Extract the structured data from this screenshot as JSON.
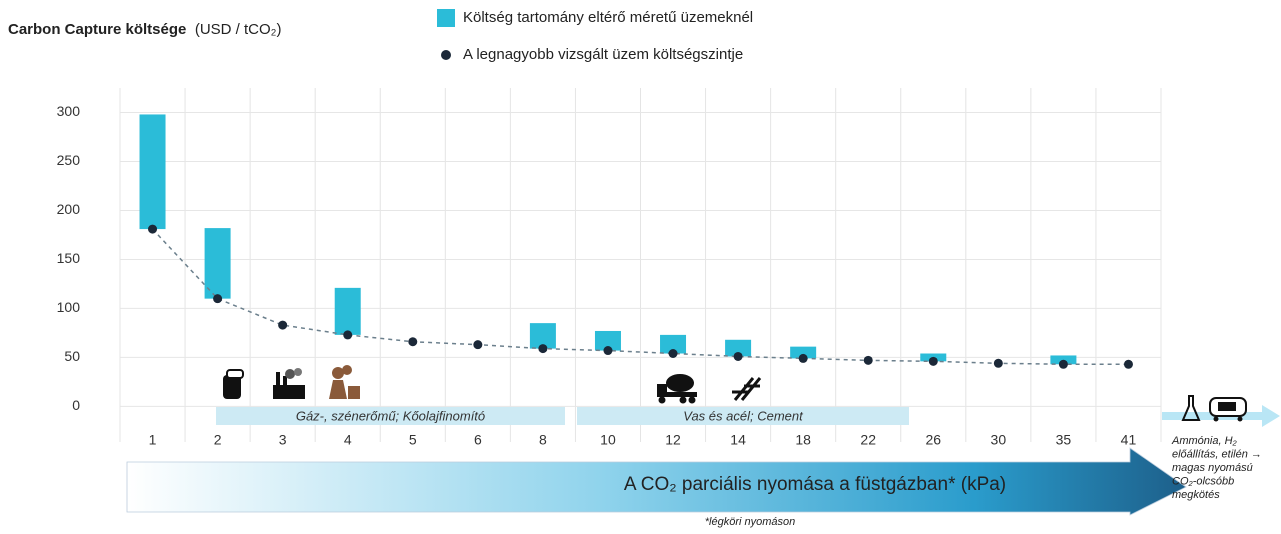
{
  "chart_data": {
    "type": "range-dot",
    "title": "Carbon Capture költsége",
    "y_axis_label": "(USD / tCO₂)",
    "x_axis_label": "A CO₂ parciális nyomása a füstgázban* (kPa)",
    "footnote": "*légköri nyomáson",
    "categories": [
      "1",
      "2",
      "3",
      "4",
      "5",
      "6",
      "8",
      "10",
      "12",
      "14",
      "18",
      "22",
      "26",
      "30",
      "35",
      "41"
    ],
    "series": [
      {
        "name": "Költség tartomány eltérő méretű üzemeknél",
        "color": "#2bbcd8",
        "kind": "range",
        "low": [
          181,
          110,
          null,
          73,
          null,
          null,
          59,
          57,
          54,
          51,
          49,
          null,
          46,
          null,
          43,
          null
        ],
        "high": [
          298,
          182,
          null,
          121,
          null,
          null,
          85,
          77,
          73,
          68,
          61,
          null,
          54,
          null,
          52,
          null
        ]
      },
      {
        "name": "A legnagyobb vizsgált üzem költségszintje",
        "color": "#1b2838",
        "kind": "dot",
        "values": [
          181,
          110,
          83,
          73,
          66,
          63,
          59,
          57,
          54,
          51,
          49,
          47,
          46,
          44,
          43,
          43
        ]
      }
    ],
    "ylim": [
      -20,
      325
    ],
    "yticks": [
      0,
      50,
      100,
      150,
      200,
      250,
      300
    ],
    "grid": true,
    "annotations": [
      "Gáz-, szénerőmű; Kőolajfinomító",
      "Vas és acél; Cement"
    ],
    "side_note": [
      "Ammónia, H₂",
      "előállítás, etilén →",
      "magas nyomású",
      "CO₂-olcsóbb",
      "megkötés"
    ]
  }
}
